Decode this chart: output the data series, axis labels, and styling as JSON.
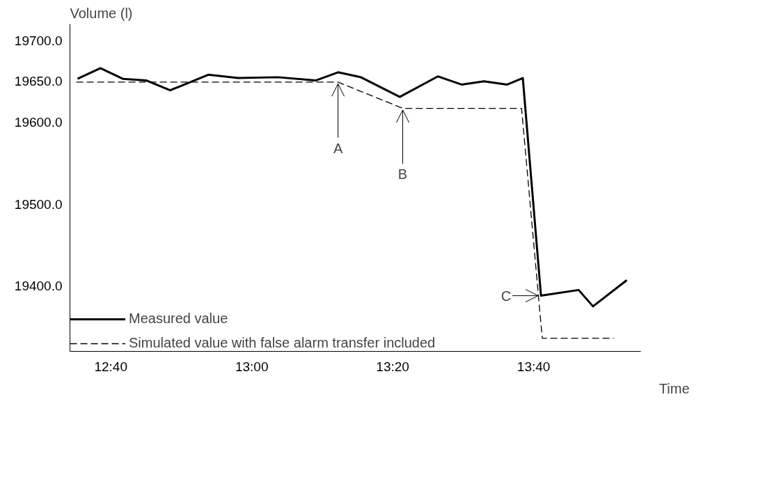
{
  "chart_data": {
    "type": "line",
    "xlabel": "Time",
    "ylabel": "Volume (l)",
    "xlim": [
      12.57,
      13.92
    ],
    "ylim": [
      19320,
      19720
    ],
    "xticks": [
      {
        "value": 12.6667,
        "label": "12:40"
      },
      {
        "value": 13.0,
        "label": "13:00"
      },
      {
        "value": 13.3333,
        "label": "13:20"
      },
      {
        "value": 13.6667,
        "label": "13:40"
      }
    ],
    "yticks": [
      {
        "value": 19400,
        "label": "19400.0"
      },
      {
        "value": 19500,
        "label": "19500.0"
      },
      {
        "value": 19600,
        "label": "19600.0"
      },
      {
        "value": 19650,
        "label": "19650.0"
      },
      {
        "value": 19700,
        "label": "19700.0"
      }
    ],
    "grid": false,
    "legend": "bottom left",
    "series": [
      {
        "name": "Measured value",
        "color": "#000000",
        "line_style": "solid",
        "x": [
          12.588,
          12.642,
          12.695,
          12.751,
          12.807,
          12.897,
          12.968,
          13.062,
          13.151,
          13.204,
          13.258,
          13.35,
          13.44,
          13.496,
          13.549,
          13.604,
          13.641,
          13.684,
          13.773,
          13.807,
          13.887
        ],
        "values": [
          19653,
          19666,
          19653,
          19651,
          19639,
          19658,
          19654,
          19655,
          19651,
          19661,
          19655,
          19631,
          19656,
          19646,
          19650,
          19646,
          19654,
          19388,
          19395,
          19375,
          19407
        ]
      },
      {
        "name": "Simulated value with false alarm transfer included",
        "color": "#000000",
        "line_style": "dashed",
        "x": [
          12.585,
          13.204,
          13.357,
          13.638,
          13.687,
          13.856
        ],
        "values": [
          19649,
          19649,
          19617,
          19617,
          19336,
          19336
        ]
      }
    ],
    "annotations": [
      {
        "text": "A",
        "x": 13.204,
        "y": 19649
      },
      {
        "text": "B",
        "x": 13.357,
        "y": 19617
      },
      {
        "text": "C",
        "x": 13.684,
        "y": 19388
      }
    ]
  }
}
